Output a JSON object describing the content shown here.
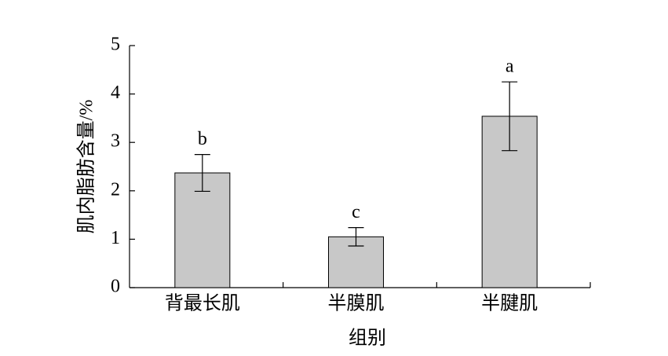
{
  "chart_data": {
    "type": "bar",
    "x_label": "组别",
    "y_label": "肌内脂肪含量/%",
    "categories": [
      "背最长肌",
      "半膜肌",
      "半腱肌"
    ],
    "values": [
      2.37,
      1.05,
      3.54
    ],
    "errors": [
      0.38,
      0.19,
      0.71
    ],
    "significance": [
      "b",
      "c",
      "a"
    ],
    "color": "#c8c8c8",
    "ylim": [
      0,
      5
    ],
    "yticks": [
      0,
      1,
      2,
      3,
      4,
      5
    ]
  }
}
